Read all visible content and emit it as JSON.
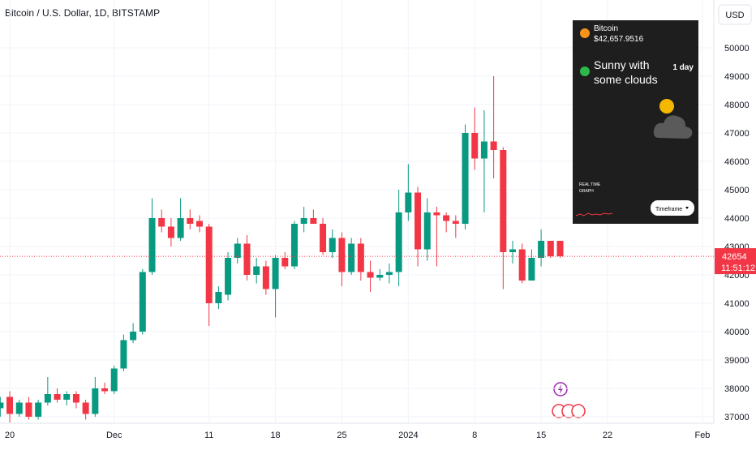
{
  "chart_data": {
    "type": "candlestick",
    "title": "Bitcoin / U.S. Dollar, 1D, BITSTAMP",
    "currency": "USD",
    "up_color": "#089981",
    "down_color": "#f23645",
    "grid": true,
    "x": [
      -1,
      0,
      1,
      2,
      3,
      4,
      5,
      6,
      7,
      8,
      9,
      10,
      11,
      12,
      13,
      14,
      15,
      16,
      17,
      18,
      19,
      20,
      21,
      22,
      23,
      24,
      25,
      26,
      27,
      28,
      29,
      30,
      31,
      32,
      33,
      34,
      35,
      36,
      37,
      38,
      39,
      40,
      41,
      42,
      43,
      44,
      45,
      46,
      47,
      48,
      49,
      50,
      51,
      52,
      53,
      54,
      55,
      56,
      57,
      58
    ],
    "open": [
      37300,
      37700,
      37100,
      37500,
      37000,
      37500,
      37800,
      37600,
      37800,
      37500,
      37100,
      38000,
      37900,
      38700,
      39700,
      40000,
      42100,
      44000,
      43700,
      43300,
      44000,
      43900,
      43700,
      41000,
      41300,
      42600,
      43100,
      42000,
      42300,
      41500,
      42600,
      42300,
      43800,
      44000,
      43800,
      42800,
      43300,
      42100,
      43100,
      42100,
      41900,
      42000,
      42100,
      44200,
      44900,
      42900,
      44200,
      44100,
      43900,
      43800,
      47000,
      46100,
      46700,
      46400,
      42800,
      42900,
      41800,
      42600,
      43200,
      43200
    ],
    "high": [
      37700,
      37900,
      37600,
      37700,
      37600,
      38400,
      38000,
      37900,
      37900,
      37600,
      38400,
      38200,
      38800,
      39900,
      40300,
      42200,
      44700,
      44300,
      44000,
      44700,
      44300,
      44100,
      43800,
      41600,
      42800,
      43300,
      43400,
      42600,
      42500,
      42700,
      42800,
      43900,
      44400,
      44300,
      44000,
      43600,
      43500,
      43300,
      43300,
      42500,
      42200,
      42400,
      45000,
      45900,
      45100,
      44700,
      44400,
      44200,
      44100,
      47300,
      47900,
      47800,
      49000,
      46500,
      43200,
      43100,
      42900,
      43600,
      43200,
      43200
    ],
    "low": [
      37000,
      36800,
      37000,
      36900,
      36900,
      37400,
      37500,
      37400,
      37300,
      36900,
      37000,
      37800,
      37800,
      38600,
      39600,
      39900,
      42000,
      43500,
      43000,
      43200,
      43600,
      43500,
      40200,
      40800,
      41100,
      42400,
      41800,
      41700,
      41300,
      40500,
      42200,
      42200,
      43500,
      43800,
      42700,
      42600,
      41600,
      42000,
      41800,
      41400,
      41800,
      41700,
      41600,
      43900,
      42300,
      42500,
      42300,
      43500,
      43300,
      43600,
      45700,
      44200,
      45400,
      41500,
      42400,
      41700,
      41800,
      42300,
      42600,
      42600
    ],
    "close": [
      37500,
      37100,
      37500,
      37000,
      37500,
      37800,
      37600,
      37800,
      37500,
      37100,
      38000,
      37900,
      38700,
      39700,
      40000,
      42100,
      44000,
      43700,
      43300,
      44000,
      43800,
      43700,
      41000,
      41400,
      42600,
      43100,
      42000,
      42300,
      41500,
      42600,
      42300,
      43800,
      44000,
      43800,
      42800,
      43300,
      42100,
      43100,
      42100,
      41900,
      42000,
      42100,
      44200,
      44900,
      42900,
      44200,
      44100,
      43900,
      43800,
      47000,
      46100,
      46700,
      46400,
      42800,
      42900,
      41800,
      42600,
      43200,
      42654,
      42654
    ],
    "ylim": [
      36771,
      51686
    ],
    "yticks": [
      37000,
      38000,
      39000,
      40000,
      41000,
      42000,
      43000,
      44000,
      45000,
      46000,
      47000,
      48000,
      49000,
      50000
    ],
    "xlim": [
      -1.03,
      74.2
    ],
    "xticks": [
      {
        "value": 0,
        "label": "20"
      },
      {
        "value": 11,
        "label": "Dec"
      },
      {
        "value": 21,
        "label": "11"
      },
      {
        "value": 28,
        "label": "18"
      },
      {
        "value": 35,
        "label": "25"
      },
      {
        "value": 42,
        "label": "2024"
      },
      {
        "value": 49,
        "label": "8"
      },
      {
        "value": 56,
        "label": "15"
      },
      {
        "value": 63,
        "label": "22"
      },
      {
        "value": 73,
        "label": "Feb"
      }
    ],
    "countdown": "11:51:12"
  },
  "widget": {
    "name": "Bitcoin",
    "price": "$42,657.9516",
    "forecast": [
      "Sunny with",
      "some clouds"
    ],
    "period": "1 day",
    "caption": [
      "REAL TIME",
      "GRAPH"
    ],
    "button": "Timeframe"
  }
}
